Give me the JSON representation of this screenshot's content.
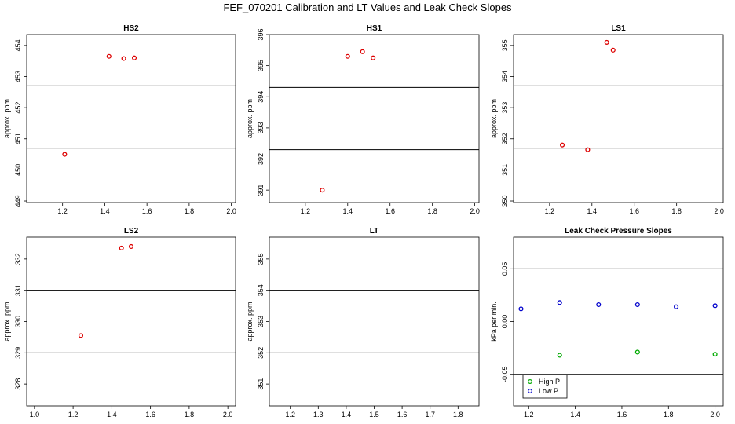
{
  "title": "FEF_070201  Calibration and LT Values and Leak Check Slopes",
  "chart_data": [
    {
      "type": "scatter",
      "title": "HS2",
      "ylabel": "approx. ppm",
      "xlim": [
        1.03,
        2.02
      ],
      "ylim": [
        448.95,
        454.35
      ],
      "xticks": [
        1.2,
        1.4,
        1.6,
        1.8,
        2.0
      ],
      "xtick_labels": [
        "1.2",
        "1.4",
        "1.6",
        "1.8",
        "2.0"
      ],
      "yticks": [
        449,
        450,
        451,
        452,
        453,
        454
      ],
      "ytick_labels": [
        "449",
        "450",
        "451",
        "452",
        "453",
        "454"
      ],
      "hlines": [
        452.7,
        450.7
      ],
      "series": [
        {
          "color": "#dd0000",
          "marker": "circle",
          "points": [
            [
              1.21,
              450.5
            ],
            [
              1.42,
              453.65
            ],
            [
              1.49,
              453.58
            ],
            [
              1.54,
              453.6
            ]
          ]
        }
      ]
    },
    {
      "type": "scatter",
      "title": "HS1",
      "ylabel": "approx. ppm",
      "xlim": [
        1.03,
        2.02
      ],
      "ylim": [
        390.6,
        396.0
      ],
      "xticks": [
        1.2,
        1.4,
        1.6,
        1.8,
        2.0
      ],
      "xtick_labels": [
        "1.2",
        "1.4",
        "1.6",
        "1.8",
        "2.0"
      ],
      "yticks": [
        391,
        392,
        393,
        394,
        395,
        396
      ],
      "ytick_labels": [
        "391",
        "392",
        "393",
        "394",
        "395",
        "396"
      ],
      "hlines": [
        394.3,
        392.3
      ],
      "series": [
        {
          "color": "#dd0000",
          "marker": "circle",
          "points": [
            [
              1.28,
              391.0
            ],
            [
              1.4,
              395.3
            ],
            [
              1.47,
              395.45
            ],
            [
              1.52,
              395.25
            ]
          ]
        }
      ]
    },
    {
      "type": "scatter",
      "title": "LS1",
      "ylabel": "approx. ppm",
      "xlim": [
        1.03,
        2.02
      ],
      "ylim": [
        349.95,
        355.35
      ],
      "xticks": [
        1.2,
        1.4,
        1.6,
        1.8,
        2.0
      ],
      "xtick_labels": [
        "1.2",
        "1.4",
        "1.6",
        "1.8",
        "2.0"
      ],
      "yticks": [
        350,
        351,
        352,
        353,
        354,
        355
      ],
      "ytick_labels": [
        "350",
        "351",
        "352",
        "353",
        "354",
        "355"
      ],
      "hlines": [
        353.7,
        351.7
      ],
      "series": [
        {
          "color": "#dd0000",
          "marker": "circle",
          "points": [
            [
              1.26,
              351.8
            ],
            [
              1.38,
              351.65
            ],
            [
              1.47,
              355.1
            ],
            [
              1.5,
              354.85
            ]
          ]
        }
      ]
    },
    {
      "type": "scatter",
      "title": "LS2",
      "ylabel": "approx. ppm",
      "xlim": [
        0.96,
        2.04
      ],
      "ylim": [
        327.3,
        332.7
      ],
      "xticks": [
        1.0,
        1.2,
        1.4,
        1.6,
        1.8,
        2.0
      ],
      "xtick_labels": [
        "1.0",
        "1.2",
        "1.4",
        "1.6",
        "1.8",
        "2.0"
      ],
      "yticks": [
        328,
        329,
        330,
        331,
        332
      ],
      "ytick_labels": [
        "328",
        "329",
        "330",
        "331",
        "332"
      ],
      "hlines": [
        331.0,
        329.0
      ],
      "series": [
        {
          "color": "#dd0000",
          "marker": "circle",
          "points": [
            [
              1.24,
              329.55
            ],
            [
              1.45,
              332.35
            ],
            [
              1.5,
              332.4
            ]
          ]
        }
      ]
    },
    {
      "type": "scatter",
      "title": "LT",
      "ylabel": "approx. ppm",
      "xlim": [
        1.125,
        1.875
      ],
      "ylim": [
        350.3,
        355.7
      ],
      "xticks": [
        1.2,
        1.3,
        1.4,
        1.5,
        1.6,
        1.7,
        1.8
      ],
      "xtick_labels": [
        "1.2",
        "1.3",
        "1.4",
        "1.5",
        "1.6",
        "1.7",
        "1.8"
      ],
      "yticks": [
        351,
        352,
        353,
        354,
        355
      ],
      "ytick_labels": [
        "351",
        "352",
        "353",
        "354",
        "355"
      ],
      "hlines": [
        354.0,
        352.0
      ],
      "series": []
    },
    {
      "type": "scatter",
      "title": "Leak Check Pressure Slopes",
      "ylabel": "kPa per min.",
      "xlim": [
        1.135,
        2.035
      ],
      "ylim": [
        -0.08,
        0.08
      ],
      "xticks": [
        1.2,
        1.4,
        1.6,
        1.8,
        2.0
      ],
      "xtick_labels": [
        "1.2",
        "1.4",
        "1.6",
        "1.8",
        "2.0"
      ],
      "yticks": [
        -0.05,
        0.0,
        0.05
      ],
      "ytick_labels": [
        "-0.05",
        "0.00",
        "0.05"
      ],
      "hlines": [
        0.05,
        -0.05
      ],
      "series": [
        {
          "name": "High P",
          "color": "#00aa00",
          "marker": "circle",
          "points": [
            [
              1.333,
              -0.032
            ],
            [
              1.667,
              -0.029
            ],
            [
              2.0,
              -0.031
            ]
          ]
        },
        {
          "name": "Low P",
          "color": "#0000cc",
          "marker": "circle",
          "points": [
            [
              1.167,
              0.012
            ],
            [
              1.333,
              0.018
            ],
            [
              1.5,
              0.016
            ],
            [
              1.667,
              0.016
            ],
            [
              1.833,
              0.014
            ],
            [
              2.0,
              0.015
            ]
          ]
        }
      ],
      "legend": {
        "position": "bottom-left",
        "entries": [
          "High P",
          "Low P"
        ]
      }
    }
  ]
}
